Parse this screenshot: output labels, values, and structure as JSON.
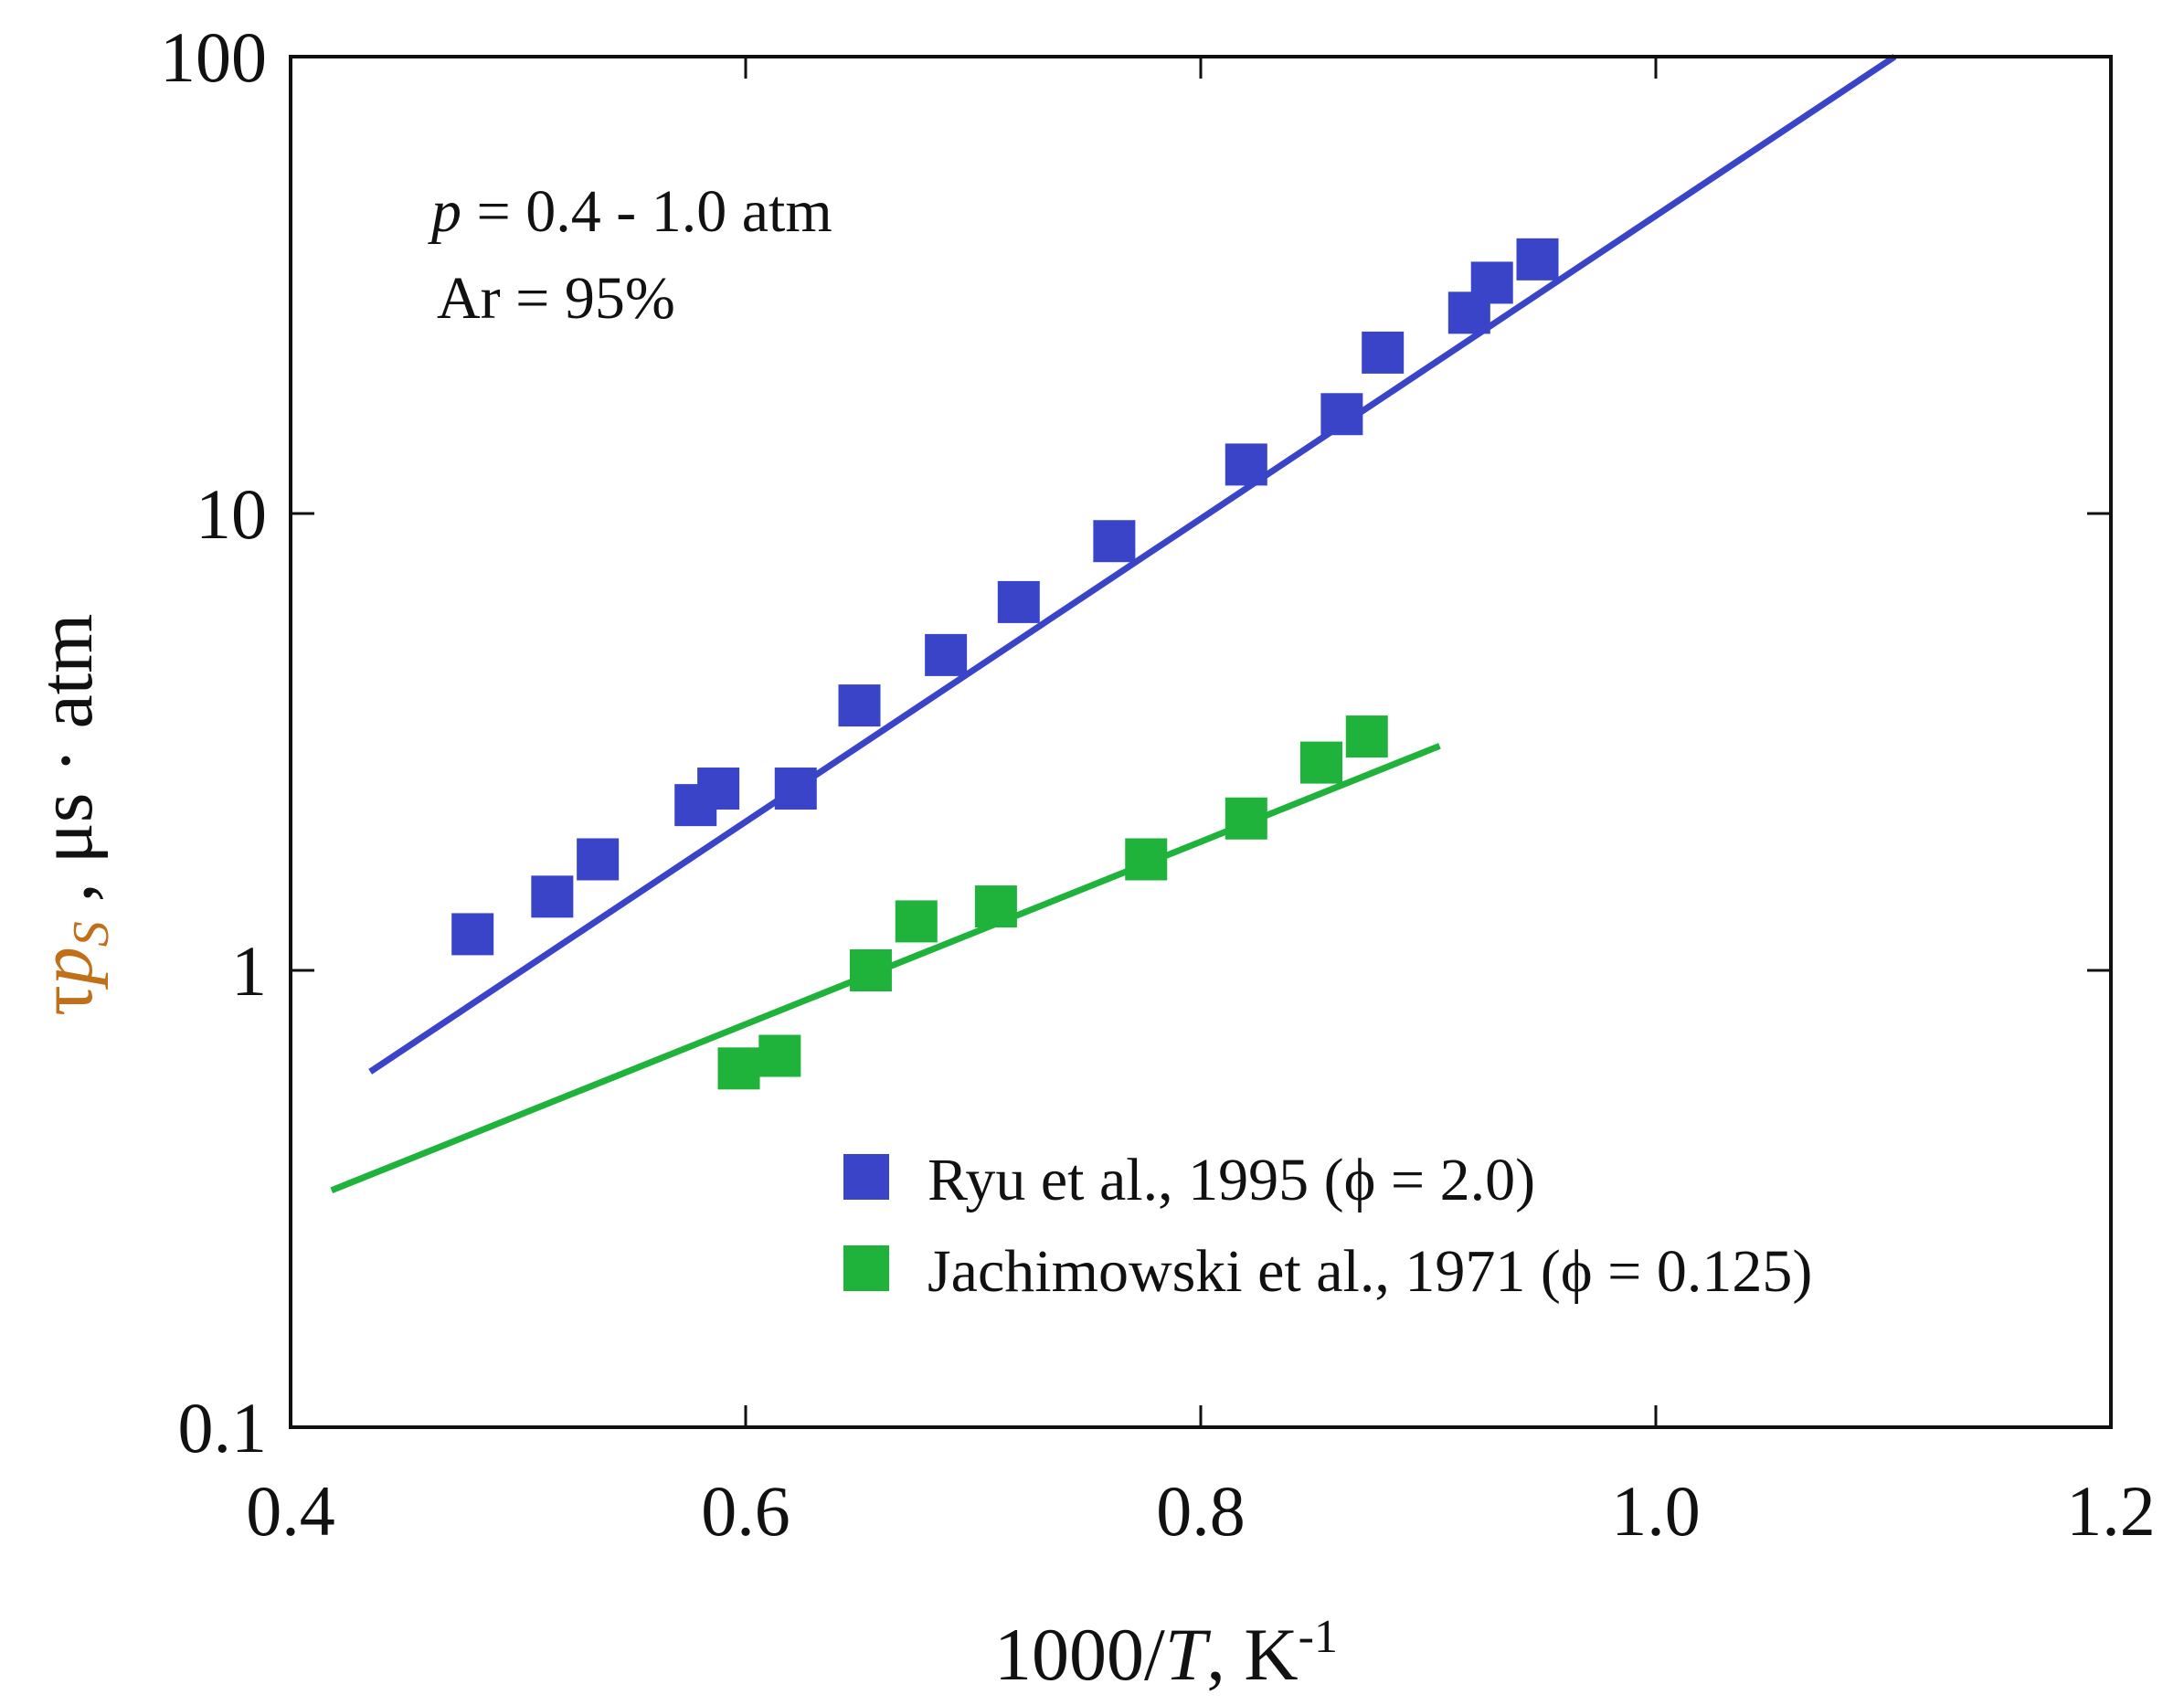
{
  "chart_data": {
    "type": "scatter",
    "title": "",
    "xlabel": "1000/T, K-1",
    "xlabel_parts": {
      "main": "1000/",
      "var": "T",
      "rest": ", K",
      "sup": "-1"
    },
    "ylabel": "τp_s, μs · atm",
    "ylabel_parts": {
      "tau": "τ",
      "p": "p",
      "sub": "S",
      "rest": " , μs · atm"
    },
    "xlim": [
      0.4,
      1.2
    ],
    "ylim": [
      0.1,
      100
    ],
    "yscale": "log",
    "x_ticks": [
      0.4,
      0.6,
      0.8,
      1.0,
      1.2
    ],
    "x_tick_labels": [
      "0.4",
      "0.6",
      "0.8",
      "1.0",
      "1.2"
    ],
    "y_ticks": [
      0.1,
      1,
      10,
      100
    ],
    "y_tick_labels": [
      "0.1",
      "1",
      "10",
      "100"
    ],
    "annotations": [
      {
        "var": "p",
        "text": " = 0.4 - 1.0 atm"
      },
      {
        "text": "Ar = 95%"
      }
    ],
    "legend_position": "lower-right",
    "series": [
      {
        "name": "Ryu et al., 1995 (ϕ = 2.0)",
        "color": "#3a44c8",
        "marker": "square",
        "points": [
          {
            "x": 0.48,
            "y": 1.2
          },
          {
            "x": 0.515,
            "y": 1.45
          },
          {
            "x": 0.535,
            "y": 1.75
          },
          {
            "x": 0.578,
            "y": 2.3
          },
          {
            "x": 0.588,
            "y": 2.5
          },
          {
            "x": 0.622,
            "y": 2.5
          },
          {
            "x": 0.65,
            "y": 3.8
          },
          {
            "x": 0.688,
            "y": 4.9
          },
          {
            "x": 0.72,
            "y": 6.4
          },
          {
            "x": 0.762,
            "y": 8.7
          },
          {
            "x": 0.82,
            "y": 12.8
          },
          {
            "x": 0.862,
            "y": 16.5
          },
          {
            "x": 0.88,
            "y": 22.5
          },
          {
            "x": 0.918,
            "y": 27.5
          },
          {
            "x": 0.928,
            "y": 32
          },
          {
            "x": 0.948,
            "y": 36
          }
        ],
        "fit_line": [
          {
            "x": 0.435,
            "y": 0.6
          },
          {
            "x": 1.105,
            "y": 100
          }
        ]
      },
      {
        "name": "Jachimowski et al., 1971 (ϕ = 0.125)",
        "color": "#1fb33c",
        "marker": "square",
        "points": [
          {
            "x": 0.597,
            "y": 0.61
          },
          {
            "x": 0.615,
            "y": 0.65
          },
          {
            "x": 0.655,
            "y": 1.0
          },
          {
            "x": 0.675,
            "y": 1.28
          },
          {
            "x": 0.71,
            "y": 1.38
          },
          {
            "x": 0.776,
            "y": 1.75
          },
          {
            "x": 0.82,
            "y": 2.15
          },
          {
            "x": 0.853,
            "y": 2.85
          },
          {
            "x": 0.873,
            "y": 3.25
          }
        ],
        "fit_line": [
          {
            "x": 0.418,
            "y": 0.33
          },
          {
            "x": 0.905,
            "y": 3.1
          }
        ]
      }
    ]
  }
}
